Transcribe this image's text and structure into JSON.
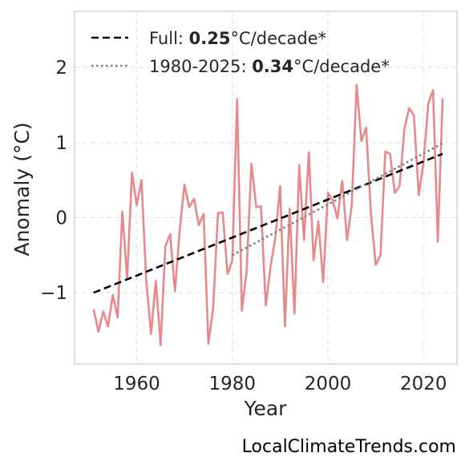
{
  "chart_data": {
    "type": "line",
    "xlabel": "Year",
    "ylabel": "Anomaly (°C)",
    "xlim": [
      1947,
      2027
    ],
    "ylim": [
      -1.95,
      2.75
    ],
    "xticks": [
      1960,
      1980,
      2000,
      2020
    ],
    "yticks": [
      -1,
      0,
      1,
      2
    ],
    "ytick_labels": [
      "−1",
      "0",
      "1",
      "2"
    ],
    "grid": true,
    "legend_position": "top-left",
    "series": [
      {
        "color": "#e8888a",
        "style": "solid",
        "x": [
          1951,
          1952,
          1953,
          1954,
          1955,
          1956,
          1957,
          1958,
          1959,
          1960,
          1961,
          1962,
          1963,
          1964,
          1965,
          1966,
          1967,
          1968,
          1969,
          1970,
          1971,
          1972,
          1973,
          1974,
          1975,
          1976,
          1977,
          1978,
          1979,
          1980,
          1981,
          1982,
          1983,
          1984,
          1985,
          1986,
          1987,
          1988,
          1989,
          1990,
          1991,
          1992,
          1993,
          1994,
          1995,
          1996,
          1997,
          1998,
          1999,
          2000,
          2001,
          2002,
          2003,
          2004,
          2005,
          2006,
          2007,
          2008,
          2009,
          2010,
          2011,
          2012,
          2013,
          2014,
          2015,
          2016,
          2017,
          2018,
          2019,
          2020,
          2021,
          2022,
          2023,
          2024
        ],
        "y": [
          -1.22,
          -1.52,
          -1.25,
          -1.45,
          -1.03,
          -1.33,
          0.08,
          -0.82,
          0.6,
          0.17,
          0.5,
          -0.84,
          -1.55,
          -0.84,
          -1.7,
          -0.38,
          -0.22,
          -0.98,
          -0.16,
          0.44,
          0.14,
          0.25,
          -0.1,
          0.05,
          -1.68,
          -1.2,
          0.06,
          0.07,
          -0.75,
          -0.57,
          1.58,
          -1.24,
          -0.72,
          0.72,
          0.14,
          0.15,
          -1.17,
          -0.65,
          -0.27,
          0.42,
          -1.45,
          0.12,
          -1.28,
          0.7,
          -0.3,
          0.87,
          -0.57,
          -0.05,
          -0.86,
          0.33,
          0.23,
          -0.01,
          0.49,
          -0.3,
          0.17,
          1.77,
          1.02,
          1.2,
          0.05,
          -0.63,
          -0.5,
          0.88,
          0.85,
          0.33,
          0.42,
          1.18,
          1.46,
          1.36,
          0.3,
          0.74,
          1.52,
          1.7,
          -0.32,
          1.59
        ]
      },
      {
        "name": "Full: 0.25°C/decade*",
        "color": "#000000",
        "style": "dashed",
        "x": [
          1951,
          2024
        ],
        "y": [
          -1.0,
          0.85
        ]
      },
      {
        "name": "1980-2025: 0.34°C/decade*",
        "color": "#808080",
        "style": "dotted",
        "x": [
          1980,
          2024
        ],
        "y": [
          -0.5,
          0.99
        ]
      }
    ],
    "legend": [
      {
        "prefix": "Full: ",
        "value": "0.25",
        "suffix": "°C/decade*"
      },
      {
        "prefix": "1980-2025: ",
        "value": "0.34",
        "suffix": "°C/decade*"
      }
    ]
  },
  "source_label": "LocalClimateTrends.com"
}
